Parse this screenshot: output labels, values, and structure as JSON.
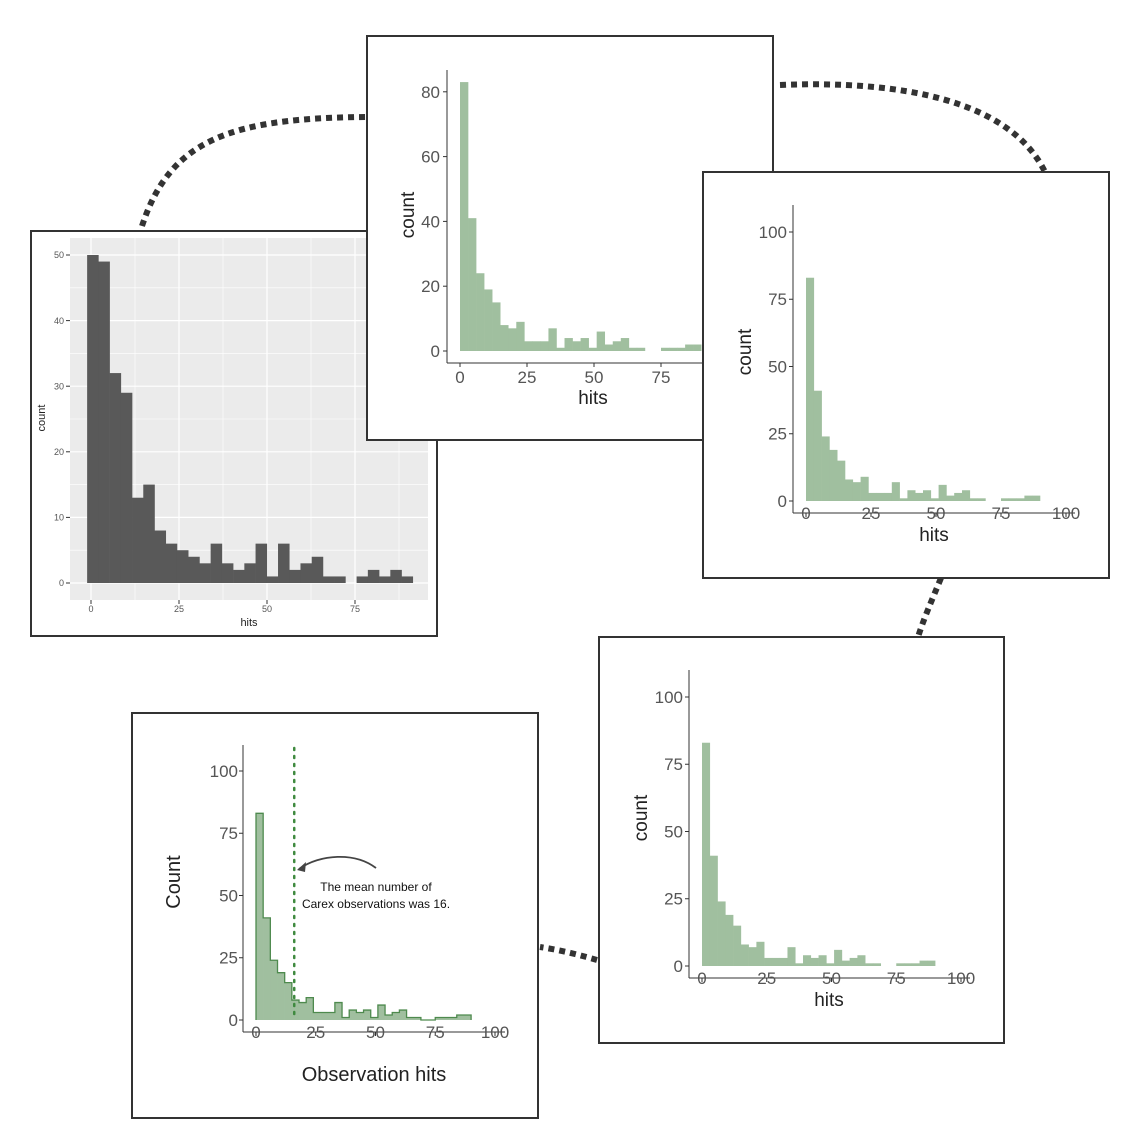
{
  "colors": {
    "gray_bar": "#595959",
    "green_fill": "#a0bf9f",
    "green_line": "#4e8a4e",
    "panel_bg": "#ebebeb",
    "connector": "#333333"
  },
  "annotation": {
    "line1": "The mean number of",
    "line2": "Carex observations was 16.",
    "mean_value": 16
  },
  "chart_data": [
    {
      "type": "bar",
      "title": "",
      "style": "ggplot-grey",
      "xlabel": "hits",
      "ylabel": "count",
      "bin_start": -1.1,
      "bin_width": 3.19,
      "values": [
        50,
        49,
        32,
        29,
        13,
        15,
        8,
        6,
        5,
        4,
        3,
        6,
        3,
        2,
        3,
        6,
        1,
        6,
        2,
        3,
        4,
        1,
        1,
        0,
        1,
        2,
        1,
        2,
        1
      ],
      "x_ticks": [
        "0",
        "25",
        "50",
        "75"
      ],
      "y_ticks": [
        "0",
        "10",
        "20",
        "30",
        "40",
        "50"
      ],
      "grid": true
    },
    {
      "type": "bar",
      "title": "",
      "style": "green-fill",
      "xlabel": "hits",
      "ylabel": "count",
      "bin_start": 0,
      "bin_width": 3,
      "values": [
        83,
        41,
        24,
        19,
        15,
        8,
        7,
        9,
        3,
        3,
        3,
        7,
        1,
        4,
        3,
        4,
        1,
        6,
        2,
        3,
        4,
        1,
        1,
        0,
        0,
        1,
        1,
        1,
        2,
        2
      ],
      "x_ticks": [
        "0",
        "25",
        "50",
        "75"
      ],
      "y_ticks": [
        "0",
        "20",
        "40",
        "60",
        "80"
      ],
      "grid": false
    },
    {
      "type": "bar",
      "title": "",
      "style": "green-fill",
      "xlabel": "hits",
      "ylabel": "count",
      "bin_start": 0,
      "bin_width": 3,
      "values": [
        83,
        41,
        24,
        19,
        15,
        8,
        7,
        9,
        3,
        3,
        3,
        7,
        1,
        4,
        3,
        4,
        1,
        6,
        2,
        3,
        4,
        1,
        1,
        0,
        0,
        1,
        1,
        1,
        2,
        2
      ],
      "x_ticks": [
        "0",
        "25",
        "50",
        "75",
        "100"
      ],
      "y_ticks": [
        "0",
        "25",
        "50",
        "75",
        "100"
      ],
      "grid": false
    },
    {
      "type": "bar",
      "title": "",
      "style": "green-fill",
      "xlabel": "hits",
      "ylabel": "count",
      "bin_start": 0,
      "bin_width": 3,
      "values": [
        83,
        41,
        24,
        19,
        15,
        8,
        7,
        9,
        3,
        3,
        3,
        7,
        1,
        4,
        3,
        4,
        1,
        6,
        2,
        3,
        4,
        1,
        1,
        0,
        0,
        1,
        1,
        1,
        2,
        2
      ],
      "x_ticks": [
        "0",
        "25",
        "50",
        "75",
        "100"
      ],
      "y_ticks": [
        "0",
        "25",
        "50",
        "75",
        "100"
      ],
      "grid": false
    },
    {
      "type": "bar",
      "title": "",
      "style": "green-outline",
      "xlabel": "Observation hits",
      "ylabel": "Count",
      "bin_start": 0,
      "bin_width": 3,
      "values": [
        83,
        41,
        24,
        19,
        15,
        8,
        7,
        9,
        3,
        3,
        3,
        7,
        1,
        4,
        3,
        4,
        1,
        6,
        2,
        3,
        4,
        1,
        1,
        0,
        0,
        1,
        1,
        1,
        2,
        2
      ],
      "x_ticks": [
        "0",
        "25",
        "50",
        "75",
        "100"
      ],
      "y_ticks": [
        "0",
        "25",
        "50",
        "75",
        "100"
      ],
      "grid": false
    }
  ]
}
